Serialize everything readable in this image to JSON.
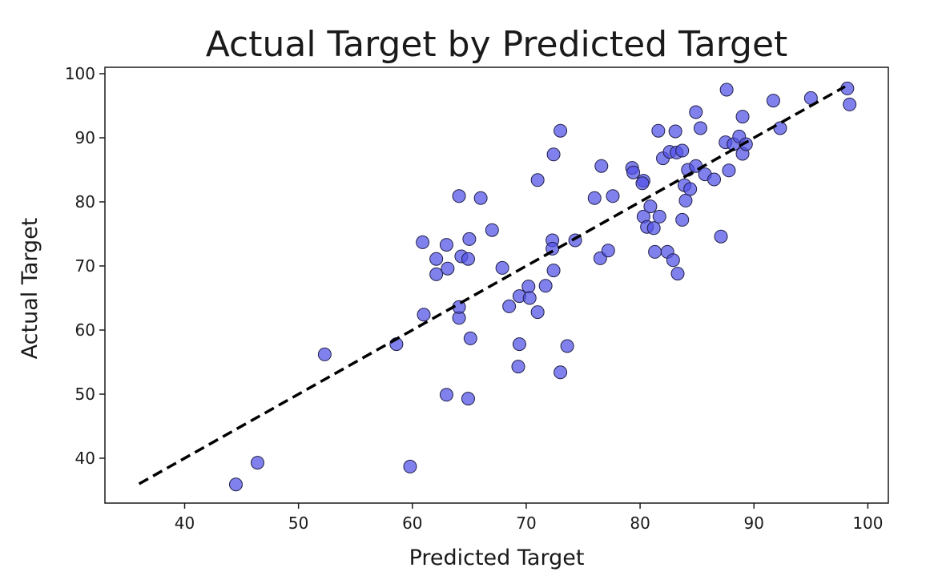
{
  "chart_data": {
    "type": "scatter",
    "title": "Actual Target by Predicted Target",
    "xlabel": "Predicted Target",
    "ylabel": "Actual Target",
    "xlim": [
      33,
      101.8
    ],
    "ylim": [
      33,
      101
    ],
    "xticks": [
      40,
      50,
      60,
      70,
      80,
      90,
      100
    ],
    "yticks": [
      40,
      50,
      60,
      70,
      80,
      90,
      100
    ],
    "grid": false,
    "legend": "none",
    "colors": {
      "points": "#5050e6",
      "point_edge": "#20204a",
      "reference_line": "#000000"
    },
    "reference_line": {
      "style": "dashed",
      "x": [
        36,
        98
      ],
      "y": [
        36,
        98
      ]
    },
    "points": {
      "x": [
        44.5,
        46.4,
        52.3,
        58.6,
        59.8,
        61.0,
        60.9,
        62.1,
        62.1,
        63.1,
        63.0,
        63.0,
        64.1,
        64.1,
        64.3,
        64.1,
        65.0,
        64.9,
        65.1,
        64.9,
        66.0,
        67.0,
        67.9,
        68.5,
        69.4,
        69.4,
        69.3,
        70.2,
        70.3,
        71.0,
        71.0,
        71.7,
        72.3,
        72.3,
        72.4,
        72.4,
        73.0,
        73.0,
        73.6,
        74.3,
        76.0,
        76.6,
        76.5,
        77.2,
        77.6,
        79.3,
        79.4,
        80.3,
        80.2,
        80.3,
        80.6,
        80.9,
        81.2,
        81.3,
        81.6,
        81.7,
        82.0,
        82.4,
        82.6,
        82.9,
        83.1,
        83.2,
        83.3,
        83.7,
        83.9,
        83.7,
        84.0,
        84.2,
        84.4,
        84.9,
        84.9,
        85.3,
        85.7,
        86.5,
        87.1,
        87.5,
        87.6,
        87.8,
        88.2,
        88.7,
        89.0,
        89.0,
        89.3,
        91.7,
        92.3,
        95.0,
        98.2,
        98.4
      ],
      "y": [
        35.9,
        39.3,
        56.2,
        57.8,
        38.7,
        62.4,
        73.7,
        71.1,
        68.7,
        69.6,
        73.3,
        49.9,
        61.9,
        63.6,
        71.5,
        80.9,
        74.2,
        71.1,
        58.7,
        49.3,
        80.6,
        75.6,
        69.7,
        63.7,
        65.3,
        57.8,
        54.3,
        66.8,
        65.0,
        62.8,
        83.4,
        66.9,
        74.0,
        72.7,
        69.3,
        87.4,
        91.1,
        53.4,
        57.5,
        74.0,
        80.6,
        85.6,
        71.2,
        72.4,
        80.9,
        85.3,
        84.6,
        83.3,
        82.9,
        77.7,
        76.1,
        79.3,
        75.9,
        72.2,
        91.1,
        77.7,
        86.8,
        72.2,
        87.8,
        70.9,
        91.0,
        87.7,
        68.8,
        88.0,
        82.6,
        77.2,
        80.2,
        85.0,
        82.0,
        85.6,
        94.0,
        91.5,
        84.3,
        83.5,
        74.6,
        89.3,
        97.5,
        84.9,
        89.0,
        90.2,
        87.5,
        93.3,
        89.0,
        95.8,
        91.5,
        96.2,
        97.7,
        95.2
      ]
    }
  }
}
